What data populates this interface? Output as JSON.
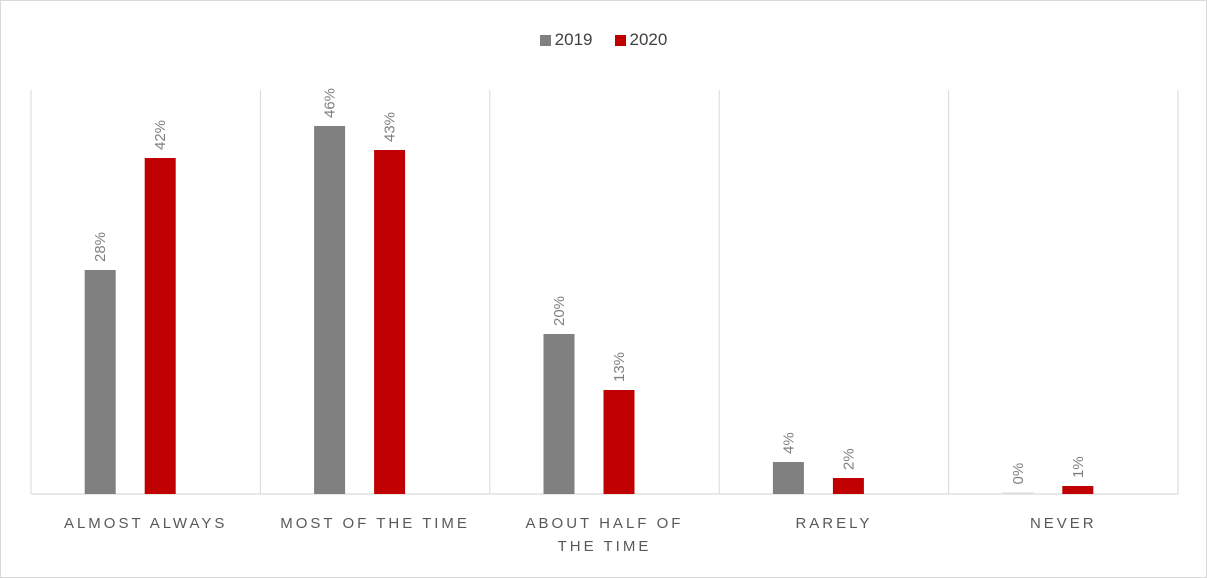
{
  "chart_data": {
    "type": "bar",
    "categories": [
      [
        "ALMOST ALWAYS"
      ],
      [
        "MOST OF THE TIME"
      ],
      [
        "ABOUT HALF OF",
        "THE TIME"
      ],
      [
        "RARELY"
      ],
      [
        "NEVER"
      ]
    ],
    "series": [
      {
        "name": "2019",
        "color": "#808080",
        "values": [
          28,
          46,
          20,
          4,
          0
        ],
        "labels": [
          "28%",
          "46%",
          "20%",
          "4%",
          "0%"
        ]
      },
      {
        "name": "2020",
        "color": "#c00000",
        "values": [
          42,
          43,
          13,
          2,
          1
        ],
        "labels": [
          "42%",
          "43%",
          "13%",
          "2%",
          "1%"
        ]
      }
    ],
    "value_unit": "%",
    "ylim": [
      0,
      46
    ],
    "y_axis_visible": false,
    "grid": "vertical category separators",
    "legend_position": "top-center",
    "data_labels": "rotated vertical above bars"
  }
}
